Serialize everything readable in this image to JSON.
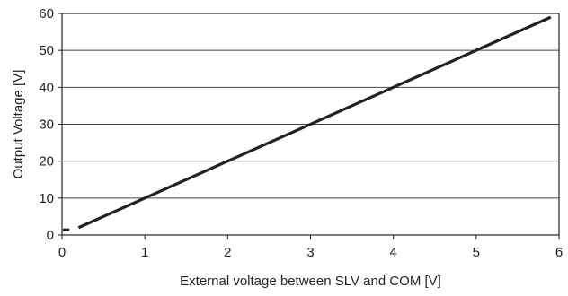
{
  "chart_data": {
    "type": "line",
    "title": "",
    "xlabel": "External voltage between SLV and COM [V]",
    "ylabel": "Output Voltage [V]",
    "xlim": [
      0,
      6
    ],
    "ylim": [
      0,
      60
    ],
    "x_ticks": [
      "0",
      "1",
      "2",
      "3",
      "4",
      "5",
      "6"
    ],
    "y_ticks": [
      "0",
      "10",
      "20",
      "30",
      "40",
      "50",
      "60"
    ],
    "grid": "horizontal",
    "legend": "none",
    "series": [
      {
        "x": [
          0.2,
          5.9
        ],
        "y": [
          2,
          59
        ],
        "color": "#222222"
      }
    ],
    "offset_mark": {
      "x": [
        0,
        0.1
      ],
      "y": [
        1.4,
        1.4
      ]
    }
  }
}
